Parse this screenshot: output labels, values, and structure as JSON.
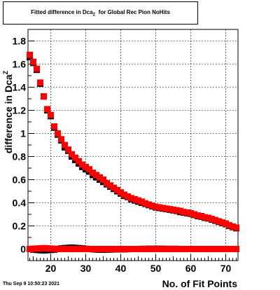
{
  "chart_data": {
    "type": "scatter",
    "title_main": "Fitted difference in Dca",
    "title_sub": "Z",
    "title_tail": "for Global Rec Pion NoHits",
    "xlabel": "No. of Fit Points",
    "ylabel_main": "difference in Dca",
    "ylabel_sub": "Z",
    "xlim": [
      13.5,
      73.5
    ],
    "ylim": [
      -0.1,
      1.9
    ],
    "x_ticks": [
      20,
      30,
      40,
      50,
      60,
      70
    ],
    "y_ticks": [
      0,
      0.2,
      0.4,
      0.6,
      0.8,
      1,
      1.2,
      1.4,
      1.6,
      1.8
    ],
    "y_tick_labels": [
      "0",
      "0.2",
      "0.4",
      "0.6",
      "0.8",
      "1",
      "1.2",
      "1.4",
      "1.6",
      "1.8"
    ],
    "grid": true,
    "series": [
      {
        "color": "#000000",
        "x": [
          14,
          15,
          16,
          17,
          18,
          19,
          20,
          21,
          22,
          23,
          24,
          25,
          26,
          27,
          28,
          29,
          30,
          31,
          32,
          33,
          34,
          35,
          36,
          37,
          38,
          39,
          40,
          41,
          42,
          43,
          44,
          45,
          46,
          47,
          48,
          49,
          50,
          51,
          52,
          53,
          54,
          55,
          56,
          57,
          58,
          59,
          60,
          61,
          62,
          63,
          64,
          65,
          66,
          67,
          68,
          69,
          70,
          71,
          72,
          73
        ],
        "y": [
          1.66,
          1.61,
          1.55,
          1.43,
          1.32,
          1.2,
          1.15,
          1.05,
          0.99,
          0.94,
          0.88,
          0.85,
          0.8,
          0.77,
          0.74,
          0.71,
          0.69,
          0.67,
          0.64,
          0.62,
          0.6,
          0.58,
          0.56,
          0.54,
          0.52,
          0.5,
          0.48,
          0.46,
          0.45,
          0.43,
          0.42,
          0.41,
          0.4,
          0.39,
          0.38,
          0.37,
          0.36,
          0.355,
          0.35,
          0.345,
          0.34,
          0.335,
          0.33,
          0.32,
          0.315,
          0.31,
          0.305,
          0.295,
          0.285,
          0.28,
          0.27,
          0.265,
          0.255,
          0.245,
          0.235,
          0.225,
          0.215,
          0.2,
          0.19,
          0.18
        ]
      },
      {
        "color": "#000000",
        "x": [
          14,
          15,
          16,
          17,
          18,
          19,
          20,
          21,
          22,
          23,
          24,
          25,
          26,
          27,
          28,
          29,
          30,
          31,
          32,
          33,
          34,
          35,
          36,
          37,
          38,
          39,
          40,
          41,
          42,
          43,
          44,
          45,
          46,
          47,
          48,
          49,
          50,
          51,
          52,
          53,
          54,
          55,
          56,
          57,
          58,
          59,
          60,
          61,
          62,
          63,
          64,
          65,
          66,
          67,
          68,
          69,
          70,
          71,
          72,
          73
        ],
        "y": [
          0.0,
          -0.005,
          -0.008,
          -0.01,
          -0.012,
          -0.01,
          -0.008,
          -0.005,
          0.0,
          0.005,
          0.008,
          0.01,
          0.012,
          0.01,
          0.008,
          0.005,
          0.002,
          0.0,
          -0.002,
          -0.004,
          -0.006,
          -0.006,
          -0.005,
          -0.004,
          -0.003,
          -0.002,
          -0.002,
          -0.002,
          -0.001,
          0.0,
          0.0,
          0.0,
          0.001,
          0.001,
          0.002,
          0.002,
          0.002,
          0.002,
          0.002,
          0.001,
          0.001,
          0.001,
          0.001,
          0.0,
          0.0,
          0.0,
          0.0,
          0.0,
          0.0,
          0.0,
          0.0,
          0.0,
          0.0,
          0.0,
          0.0,
          0.0,
          0.0,
          0.0,
          0.0,
          0.0
        ]
      },
      {
        "color": "#ff0000",
        "x": [
          14,
          15,
          16,
          17,
          18,
          19,
          20,
          21,
          22,
          23,
          24,
          25,
          26,
          27,
          28,
          29,
          30,
          31,
          32,
          33,
          34,
          35,
          36,
          37,
          38,
          39,
          40,
          41,
          42,
          43,
          44,
          45,
          46,
          47,
          48,
          49,
          50,
          51,
          52,
          53,
          54,
          55,
          56,
          57,
          58,
          59,
          60,
          61,
          62,
          63,
          64,
          65,
          66,
          67,
          68,
          69,
          70,
          71,
          72,
          73
        ],
        "y": [
          1.68,
          1.62,
          1.56,
          1.44,
          1.32,
          1.21,
          1.16,
          1.06,
          1.0,
          0.95,
          0.9,
          0.86,
          0.82,
          0.79,
          0.76,
          0.73,
          0.71,
          0.69,
          0.66,
          0.64,
          0.62,
          0.6,
          0.57,
          0.55,
          0.53,
          0.51,
          0.49,
          0.47,
          0.455,
          0.44,
          0.43,
          0.42,
          0.41,
          0.395,
          0.385,
          0.375,
          0.365,
          0.36,
          0.355,
          0.35,
          0.345,
          0.34,
          0.335,
          0.33,
          0.32,
          0.315,
          0.31,
          0.3,
          0.29,
          0.285,
          0.275,
          0.27,
          0.26,
          0.25,
          0.24,
          0.23,
          0.22,
          0.205,
          0.195,
          0.185
        ]
      },
      {
        "color": "#ff0000",
        "x": [
          14,
          15,
          16,
          17,
          18,
          19,
          20,
          21,
          22,
          23,
          24,
          25,
          26,
          27,
          28,
          29,
          30,
          31,
          32,
          33,
          34,
          35,
          36,
          37,
          38,
          39,
          40,
          41,
          42,
          43,
          44,
          45,
          46,
          47,
          48,
          49,
          50,
          51,
          52,
          53,
          54,
          55,
          56,
          57,
          58,
          59,
          60,
          61,
          62,
          63,
          64,
          65,
          66,
          67,
          68,
          69,
          70,
          71,
          72,
          73
        ],
        "y": [
          0.0,
          0.002,
          0.004,
          0.006,
          0.008,
          0.006,
          0.004,
          0.002,
          0.0,
          0.0,
          0.0,
          0.0,
          0.0,
          0.0,
          0.0,
          0.0,
          0.0,
          0.0,
          0.0,
          0.0,
          0.0,
          0.0,
          0.0,
          0.0,
          0.0,
          0.0,
          0.0,
          0.0,
          0.0,
          0.0,
          0.0,
          0.0,
          0.0,
          0.0,
          0.0,
          0.0,
          0.0,
          0.0,
          0.0,
          0.0,
          0.0,
          0.0,
          0.0,
          0.0,
          0.0,
          0.0,
          0.0,
          0.0,
          0.0,
          0.0,
          0.0,
          0.0,
          0.0,
          0.0,
          0.0,
          0.0,
          0.0,
          0.0,
          0.0,
          0.0
        ]
      }
    ]
  },
  "footer": {
    "timestamp": "Thu Sep  9 10:50:23 2021"
  }
}
